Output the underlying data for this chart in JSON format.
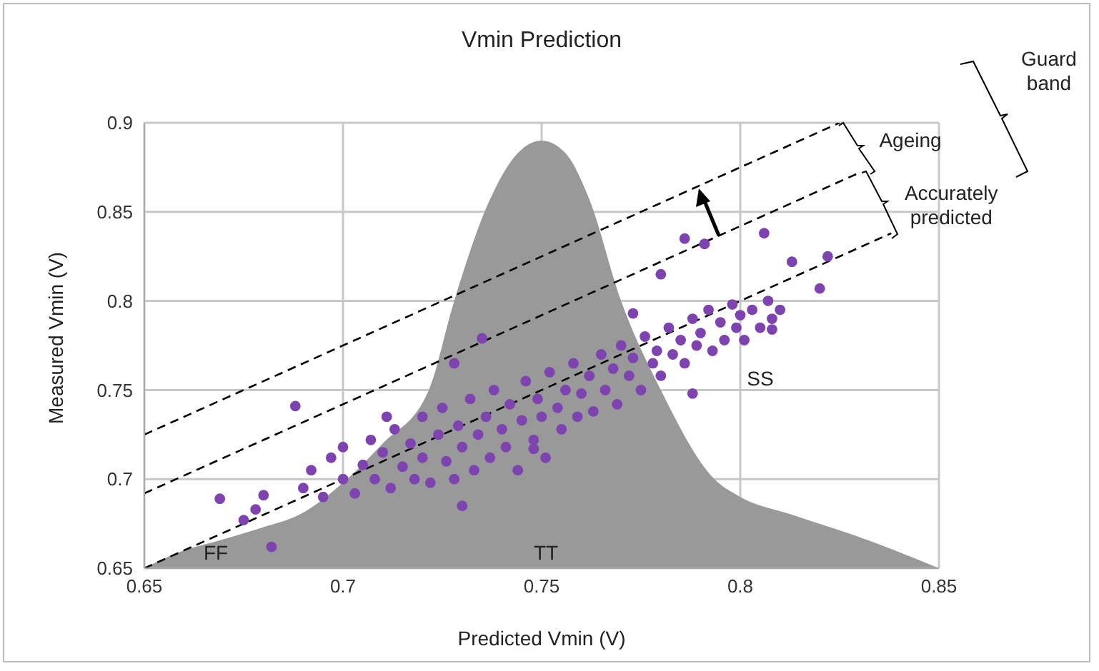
{
  "chart_data": {
    "type": "scatter",
    "title": "Vmin Prediction",
    "xlabel": "Predicted Vmin (V)",
    "ylabel": "Measured Vmin (V)",
    "xlim": [
      0.65,
      0.85
    ],
    "xticks": [
      0.65,
      0.7,
      0.75,
      0.8,
      0.85
    ],
    "ylim": [
      0.65,
      0.9
    ],
    "yticks": [
      0.65,
      0.7,
      0.75,
      0.8,
      0.85,
      0.9
    ],
    "grid": true,
    "series": [
      {
        "type": "area",
        "color": "#999999",
        "x": [
          0.65,
          0.66,
          0.668,
          0.68,
          0.689,
          0.701,
          0.71,
          0.7216,
          0.728,
          0.737,
          0.744,
          0.75,
          0.756,
          0.762,
          0.77,
          0.78,
          0.7935,
          0.8,
          0.813,
          0.833,
          0.85
        ],
        "values": [
          0.65,
          0.66,
          0.665,
          0.673,
          0.68,
          0.7,
          0.72,
          0.75,
          0.8,
          0.857,
          0.883,
          0.89,
          0.883,
          0.857,
          0.8,
          0.75,
          0.7,
          0.69,
          0.68,
          0.665,
          0.65
        ]
      },
      {
        "color": "#7d44b0",
        "marker": "circle",
        "x": [
          0.669,
          0.682,
          0.688,
          0.73,
          0.711,
          0.728,
          0.675,
          0.678,
          0.68,
          0.786,
          0.791,
          0.806,
          0.78,
          0.822,
          0.813,
          0.82,
          0.808,
          0.788,
          0.773,
          0.735,
          0.748,
          0.69,
          0.692,
          0.695,
          0.697,
          0.7,
          0.7,
          0.703,
          0.705,
          0.707,
          0.708,
          0.71,
          0.712,
          0.713,
          0.715,
          0.717,
          0.718,
          0.72,
          0.72,
          0.722,
          0.724,
          0.725,
          0.726,
          0.728,
          0.729,
          0.73,
          0.732,
          0.733,
          0.734,
          0.736,
          0.737,
          0.738,
          0.74,
          0.741,
          0.742,
          0.744,
          0.745,
          0.746,
          0.748,
          0.749,
          0.75,
          0.751,
          0.752,
          0.754,
          0.755,
          0.756,
          0.758,
          0.759,
          0.76,
          0.762,
          0.763,
          0.765,
          0.766,
          0.768,
          0.769,
          0.77,
          0.772,
          0.773,
          0.775,
          0.776,
          0.778,
          0.779,
          0.78,
          0.782,
          0.783,
          0.785,
          0.786,
          0.788,
          0.789,
          0.79,
          0.792,
          0.793,
          0.795,
          0.796,
          0.798,
          0.799,
          0.8,
          0.801,
          0.803,
          0.805,
          0.807,
          0.808,
          0.81
        ],
        "values": [
          0.689,
          0.662,
          0.741,
          0.685,
          0.735,
          0.765,
          0.677,
          0.683,
          0.691,
          0.835,
          0.832,
          0.838,
          0.815,
          0.825,
          0.822,
          0.807,
          0.784,
          0.748,
          0.793,
          0.779,
          0.717,
          0.695,
          0.705,
          0.69,
          0.712,
          0.7,
          0.718,
          0.692,
          0.708,
          0.722,
          0.7,
          0.715,
          0.695,
          0.728,
          0.707,
          0.72,
          0.7,
          0.735,
          0.712,
          0.698,
          0.725,
          0.74,
          0.71,
          0.7,
          0.73,
          0.718,
          0.745,
          0.705,
          0.725,
          0.735,
          0.712,
          0.75,
          0.728,
          0.718,
          0.742,
          0.705,
          0.733,
          0.755,
          0.722,
          0.745,
          0.735,
          0.712,
          0.76,
          0.74,
          0.728,
          0.75,
          0.765,
          0.735,
          0.748,
          0.758,
          0.738,
          0.77,
          0.75,
          0.762,
          0.742,
          0.775,
          0.758,
          0.768,
          0.75,
          0.78,
          0.765,
          0.772,
          0.758,
          0.785,
          0.77,
          0.778,
          0.765,
          0.79,
          0.775,
          0.782,
          0.795,
          0.772,
          0.788,
          0.778,
          0.798,
          0.785,
          0.792,
          0.778,
          0.795,
          0.785,
          0.8,
          0.79,
          0.795
        ]
      },
      {
        "type": "line",
        "color": "#000000",
        "line_style": "dashed",
        "x": [
          0.65,
          0.825
        ],
        "values": [
          0.725,
          0.9
        ]
      },
      {
        "type": "line",
        "color": "#000000",
        "line_style": "dashed",
        "x": [
          0.65,
          0.83
        ],
        "values": [
          0.692,
          0.872
        ]
      },
      {
        "type": "line",
        "color": "#000000",
        "line_style": "dashed",
        "x": [
          0.65,
          0.838
        ],
        "values": [
          0.65,
          0.838
        ]
      }
    ],
    "annotations": [
      "FF",
      "TT",
      "SS",
      "Ageing",
      {
        "text": "Accurately predicted",
        "x": 0.838,
        "y": 0.838
      },
      "Guard band"
    ]
  }
}
